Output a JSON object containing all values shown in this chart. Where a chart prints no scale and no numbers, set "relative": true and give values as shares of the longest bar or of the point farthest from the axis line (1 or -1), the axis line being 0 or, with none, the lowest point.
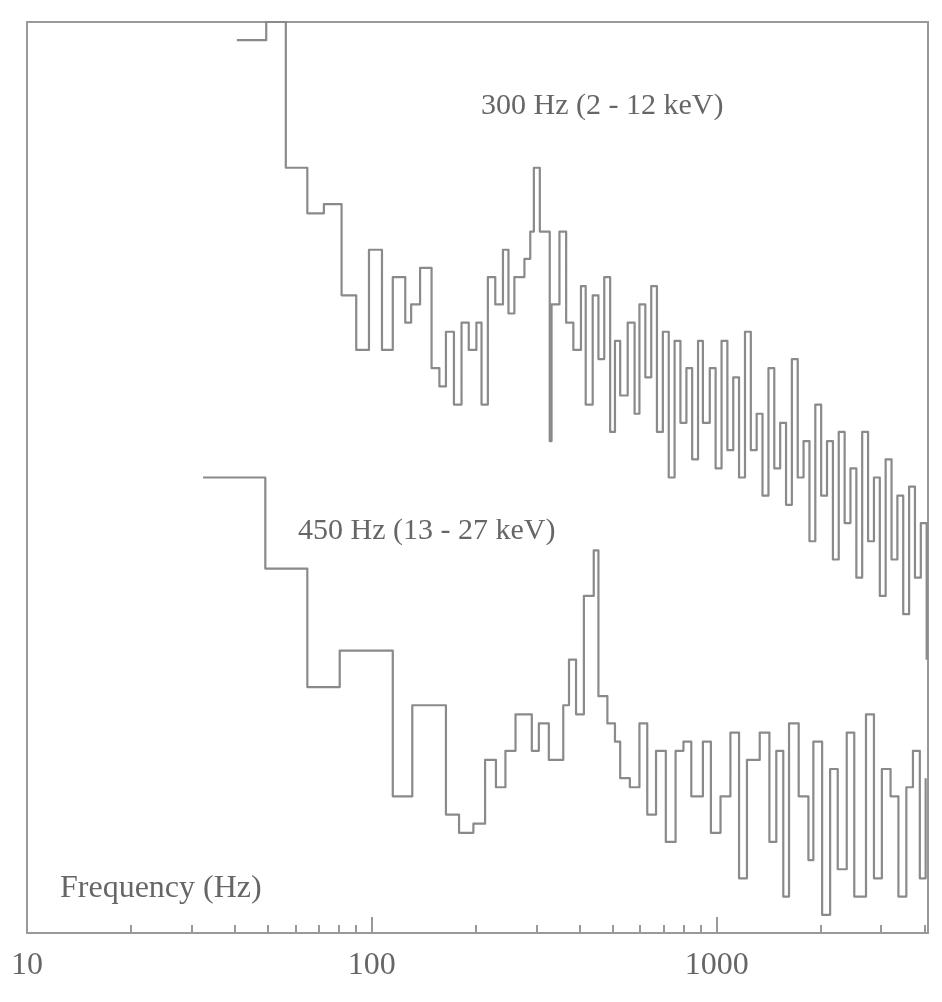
{
  "chart_data": {
    "type": "step",
    "relative": true,
    "xlabel": "Frequency (Hz)",
    "log": "x",
    "xlim": [
      10,
      4100
    ],
    "xticks": [
      10,
      100,
      1000
    ],
    "grid": false,
    "marker": "none",
    "line_style": "solid",
    "annotations": [
      "300 Hz (2 - 12 keV)",
      "450 Hz (13 - 27 keV)"
    ],
    "series": [
      {
        "color": "#8a8a8a",
        "x": [
          40.6,
          49.4,
          56.3,
          65.0,
          72.6,
          81.7,
          90.1,
          98.1,
          107,
          115,
          125,
          130,
          138,
          149,
          157,
          164,
          173,
          182,
          191,
          201,
          208,
          217,
          228,
          240,
          249,
          259,
          277,
          288,
          295,
          307,
          328,
          332,
          350,
          366,
          384,
          404,
          417,
          437,
          454,
          472,
          491,
          507,
          525,
          552,
          578,
          597,
          621,
          646,
          671,
          698,
          726,
          755,
          785,
          817,
          849,
          883,
          912,
          955,
          993,
          1033,
          1074,
          1117,
          1161,
          1208,
          1256,
          1306,
          1358,
          1413,
          1469,
          1528,
          1589,
          1652,
          1718,
          1786,
          1858,
          1932,
          2009,
          2089,
          2173,
          2259,
          2350,
          2443,
          2541,
          2642,
          2748,
          2858,
          2972,
          3090,
          3214,
          3342,
          3475,
          3614,
          3758,
          3908,
          4064
        ],
        "values": [
          0.98,
          1.0,
          0.84,
          0.79,
          0.8,
          0.7,
          0.64,
          0.75,
          0.64,
          0.72,
          0.67,
          0.69,
          0.73,
          0.62,
          0.6,
          0.66,
          0.58,
          0.67,
          0.64,
          0.67,
          0.58,
          0.72,
          0.69,
          0.75,
          0.68,
          0.72,
          0.74,
          0.77,
          0.84,
          0.77,
          0.54,
          0.69,
          0.77,
          0.67,
          0.64,
          0.71,
          0.58,
          0.7,
          0.63,
          0.72,
          0.55,
          0.65,
          0.59,
          0.67,
          0.57,
          0.69,
          0.61,
          0.71,
          0.55,
          0.66,
          0.5,
          0.65,
          0.56,
          0.62,
          0.52,
          0.65,
          0.56,
          0.62,
          0.51,
          0.65,
          0.53,
          0.61,
          0.5,
          0.66,
          0.53,
          0.57,
          0.48,
          0.62,
          0.51,
          0.56,
          0.47,
          0.63,
          0.5,
          0.54,
          0.43,
          0.58,
          0.48,
          0.54,
          0.41,
          0.55,
          0.45,
          0.51,
          0.39,
          0.55,
          0.43,
          0.5,
          0.37,
          0.52,
          0.41,
          0.48,
          0.35,
          0.49,
          0.39,
          0.45,
          0.3
        ]
      },
      {
        "color": "#8a8a8a",
        "x": [
          32.4,
          49.1,
          65.0,
          80.7,
          97.4,
          115,
          131,
          164,
          179,
          197,
          213,
          229,
          244,
          261,
          291,
          305,
          326,
          359,
          373,
          391,
          412,
          440,
          454,
          482,
          507,
          525,
          560,
          597,
          629,
          667,
          712,
          760,
          801,
          844,
          912,
          962,
          1026,
          1096,
          1161,
          1224,
          1333,
          1422,
          1489,
          1560,
          1621,
          1729,
          1845,
          1907,
          2022,
          2133,
          2244,
          2383,
          2506,
          2710,
          2858,
          3013,
          3193,
          3365,
          3548,
          3708,
          3882,
          4036
        ],
        "values": [
          0.5,
          0.4,
          0.27,
          0.31,
          0.31,
          0.15,
          0.25,
          0.13,
          0.11,
          0.12,
          0.19,
          0.16,
          0.2,
          0.24,
          0.2,
          0.23,
          0.19,
          0.25,
          0.3,
          0.24,
          0.37,
          0.42,
          0.26,
          0.23,
          0.21,
          0.17,
          0.16,
          0.23,
          0.13,
          0.2,
          0.1,
          0.2,
          0.21,
          0.15,
          0.21,
          0.11,
          0.15,
          0.22,
          0.06,
          0.19,
          0.22,
          0.1,
          0.2,
          0.04,
          0.23,
          0.15,
          0.08,
          0.21,
          0.02,
          0.18,
          0.07,
          0.22,
          0.04,
          0.24,
          0.06,
          0.18,
          0.15,
          0.04,
          0.16,
          0.2,
          0.06,
          0.17
        ]
      }
    ]
  }
}
